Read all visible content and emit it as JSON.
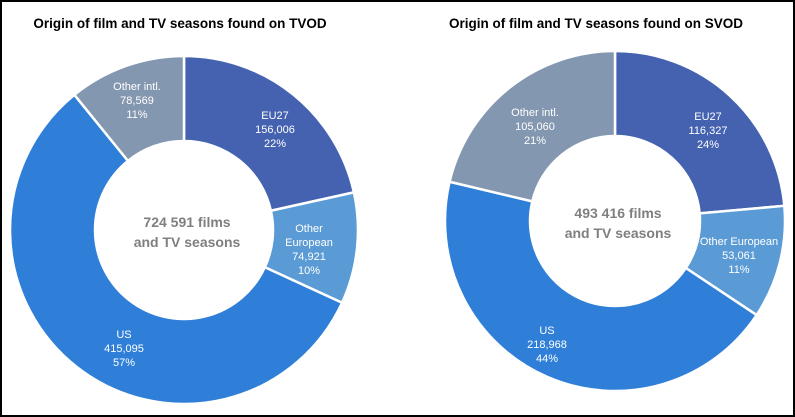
{
  "chart_data": [
    {
      "type": "pie",
      "variant": "donut",
      "title": "Origin of film and TV seasons found on TVOD",
      "center_label": [
        "724 591 films",
        "and TV seasons"
      ],
      "slices": [
        {
          "name": "EU27",
          "value_label": "156,006",
          "percent_label": "22%",
          "value": 156006,
          "color": "#4462b0"
        },
        {
          "name": "Other European",
          "name_lines": [
            "Other",
            "European"
          ],
          "value_label": "74,921",
          "percent_label": "10%",
          "value": 74921,
          "color": "#5b9bd5"
        },
        {
          "name": "US",
          "value_label": "415,095",
          "percent_label": "57%",
          "value": 415095,
          "color": "#2f7fd8"
        },
        {
          "name": "Other intl.",
          "value_label": "78,569",
          "percent_label": "11%",
          "value": 78569,
          "color": "#8497b0"
        }
      ]
    },
    {
      "type": "pie",
      "variant": "donut",
      "title": "Origin of film and TV seasons found on SVOD",
      "center_label": [
        "493 416 films",
        "and TV seasons"
      ],
      "slices": [
        {
          "name": "EU27",
          "value_label": "116,327",
          "percent_label": "24%",
          "value": 116327,
          "color": "#4462b0"
        },
        {
          "name": "Other European",
          "name_lines": [
            "Other European"
          ],
          "value_label": "53,061",
          "percent_label": "11%",
          "value": 53061,
          "color": "#5b9bd5"
        },
        {
          "name": "US",
          "value_label": "218,968",
          "percent_label": "44%",
          "value": 218968,
          "color": "#2f7fd8"
        },
        {
          "name": "Other intl.",
          "value_label": "105,060",
          "percent_label": "21%",
          "value": 105060,
          "color": "#8497b0"
        }
      ]
    }
  ]
}
